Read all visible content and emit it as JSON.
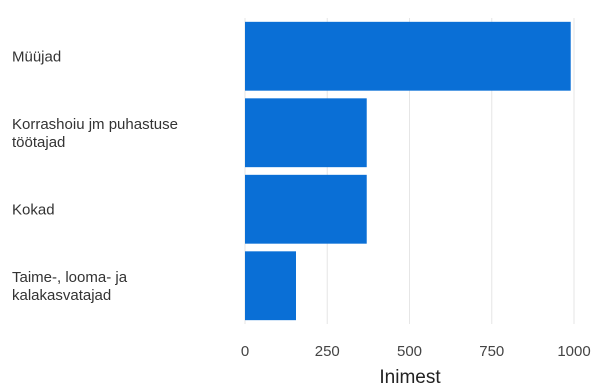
{
  "chart_data": {
    "type": "bar",
    "orientation": "horizontal",
    "categories": [
      [
        "Müüjad"
      ],
      [
        "Korrashoiu jm puhastuse",
        "töötajad"
      ],
      [
        "Kokad"
      ],
      [
        "Taime-, looma- ja",
        "kalakasvatajad"
      ]
    ],
    "values": [
      990,
      370,
      370,
      155
    ],
    "xlabel": "Inimest",
    "xlim": [
      0,
      1000
    ],
    "xticks": [
      0,
      250,
      500,
      750,
      1000
    ],
    "grid": true,
    "bar_color": "#0a6fd6"
  }
}
